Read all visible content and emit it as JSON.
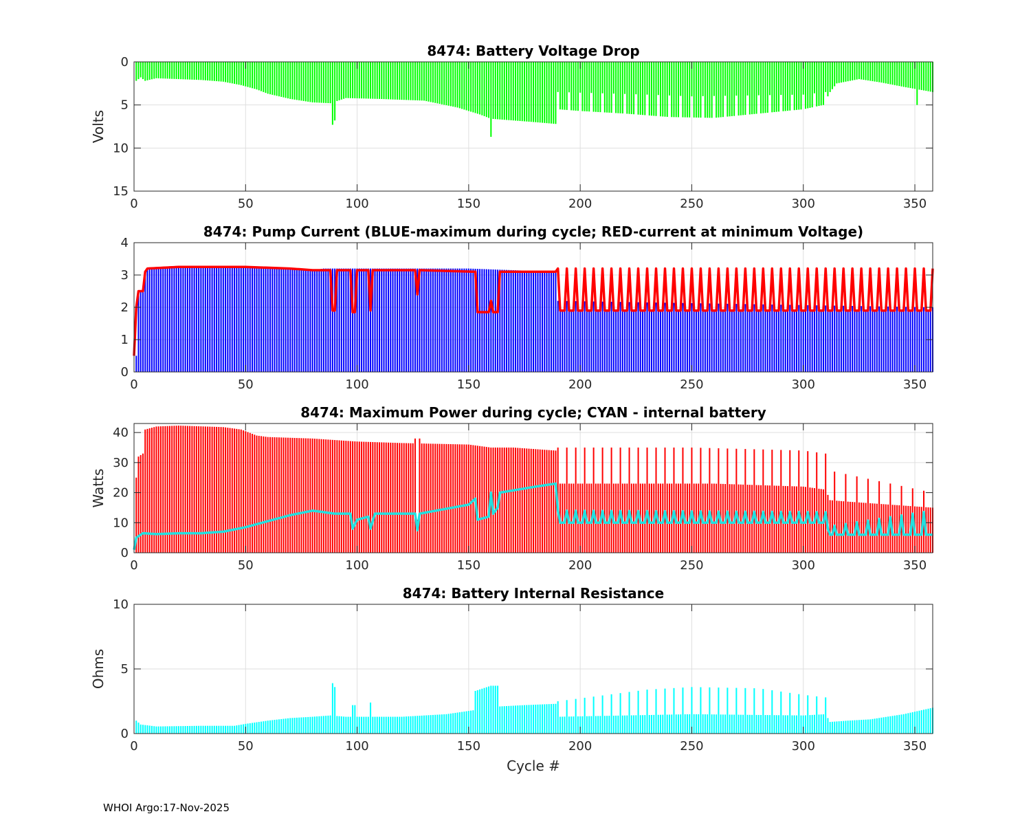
{
  "footer": {
    "agency": "WHOI Argo:",
    "date": "17-Nov-2025"
  },
  "colors": {
    "green": "#00ff00",
    "blue": "#0000ff",
    "red": "#ff0000",
    "cyan": "#00ffff",
    "cyan_line": "#22e0e0"
  },
  "chart_data": [
    {
      "type": "bar",
      "title": "8474: Battery Voltage Drop",
      "xlabel": "",
      "ylabel": "Volts",
      "xlim": [
        0,
        358
      ],
      "ylim": [
        0,
        15
      ],
      "y_reversed": true,
      "xticks": [
        0,
        50,
        100,
        150,
        200,
        250,
        300,
        350
      ],
      "yticks": [
        0,
        5,
        10,
        15
      ],
      "grid": true,
      "series": [
        {
          "name": "voltage drop",
          "color": "#00ff00",
          "kind": "bar",
          "knots": [
            [
              1,
              2.2
            ],
            [
              3,
              1.8
            ],
            [
              5,
              2.2
            ],
            [
              10,
              1.9
            ],
            [
              20,
              2.0
            ],
            [
              30,
              2.1
            ],
            [
              40,
              2.3
            ],
            [
              48,
              2.7
            ],
            [
              55,
              3.2
            ],
            [
              60,
              3.7
            ],
            [
              70,
              4.3
            ],
            [
              80,
              4.7
            ],
            [
              88,
              4.8
            ],
            [
              95,
              4.2
            ],
            [
              110,
              4.3
            ],
            [
              130,
              4.5
            ],
            [
              145,
              5.3
            ],
            [
              150,
              5.7
            ],
            [
              155,
              6.1
            ],
            [
              160,
              6.6
            ],
            [
              170,
              6.8
            ],
            [
              180,
              7.0
            ],
            [
              189,
              7.2
            ],
            [
              190,
              5.5
            ],
            [
              200,
              5.7
            ],
            [
              220,
              6.0
            ],
            [
              240,
              6.4
            ],
            [
              260,
              6.5
            ],
            [
              280,
              6.0
            ],
            [
              300,
              5.5
            ],
            [
              309,
              5.0
            ],
            [
              312,
              3.5
            ],
            [
              315,
              2.5
            ],
            [
              325,
              2.0
            ],
            [
              335,
              2.4
            ],
            [
              345,
              2.9
            ],
            [
              358,
              3.5
            ]
          ],
          "alt": {
            "start": 190,
            "end": 310,
            "period": 5,
            "knots": [
              [
                190,
                3.5
              ],
              [
                230,
                3.8
              ],
              [
                250,
                4.0
              ],
              [
                300,
                3.8
              ],
              [
                310,
                3.5
              ]
            ]
          },
          "spikes": [
            [
              89,
              7.3
            ],
            [
              90,
              6.8
            ],
            [
              160,
              8.7
            ],
            [
              351,
              5.0
            ]
          ]
        }
      ]
    },
    {
      "type": "bar",
      "title": "8474: Pump Current (BLUE-maximum during cycle; RED-current at minimum Voltage)",
      "xlabel": "",
      "ylabel": "",
      "xlim": [
        0,
        358
      ],
      "ylim": [
        0,
        4
      ],
      "xticks": [
        0,
        50,
        100,
        150,
        200,
        250,
        300,
        350
      ],
      "yticks": [
        0,
        1,
        2,
        3,
        4
      ],
      "grid": true,
      "series": [
        {
          "name": "BLUE-maximum during cycle",
          "color": "#0000ff",
          "kind": "bar",
          "knots": [
            [
              1,
              0.5
            ],
            [
              2,
              2.5
            ],
            [
              4,
              2.5
            ],
            [
              5,
              3.1
            ],
            [
              6,
              3.2
            ],
            [
              20,
              3.25
            ],
            [
              50,
              3.25
            ],
            [
              70,
              3.2
            ],
            [
              80,
              3.15
            ],
            [
              85,
              3.2
            ],
            [
              120,
              3.2
            ],
            [
              150,
              3.2
            ],
            [
              189,
              3.1
            ],
            [
              190,
              1.9
            ],
            [
              358,
              1.9
            ]
          ],
          "alt": {
            "start": 190,
            "end": 358,
            "period": 4,
            "knots": [
              [
                190,
                2.2
              ],
              [
                358,
                2.0
              ]
            ]
          },
          "spikes": []
        },
        {
          "name": "RED-current at minimum Voltage",
          "color": "#ff0000",
          "kind": "line",
          "knots": [
            [
              0,
              0.5
            ],
            [
              1,
              2.0
            ],
            [
              2,
              2.5
            ],
            [
              4,
              2.5
            ],
            [
              5,
              3.1
            ],
            [
              6,
              3.2
            ],
            [
              20,
              3.25
            ],
            [
              50,
              3.25
            ],
            [
              70,
              3.2
            ],
            [
              80,
              3.15
            ],
            [
              85,
              3.15
            ],
            [
              88,
              3.15
            ],
            [
              89,
              1.9
            ],
            [
              90,
              1.9
            ],
            [
              91,
              3.15
            ],
            [
              97,
              3.15
            ],
            [
              98,
              1.85
            ],
            [
              99,
              1.85
            ],
            [
              100,
              3.15
            ],
            [
              105,
              3.15
            ],
            [
              106,
              1.9
            ],
            [
              107,
              3.15
            ],
            [
              126,
              3.15
            ],
            [
              127,
              2.4
            ],
            [
              128,
              3.15
            ],
            [
              153,
              3.1
            ],
            [
              154,
              1.85
            ],
            [
              159,
              1.85
            ],
            [
              160,
              2.2
            ],
            [
              161,
              1.85
            ],
            [
              163,
              1.85
            ],
            [
              164,
              3.1
            ],
            [
              189,
              3.1
            ],
            [
              190,
              1.9
            ],
            [
              358,
              1.9
            ]
          ],
          "alt": {
            "start": 190,
            "end": 358,
            "period": 4,
            "knots": [
              [
                190,
                3.2
              ],
              [
                358,
                3.2
              ]
            ]
          },
          "spikes": []
        }
      ]
    },
    {
      "type": "bar",
      "title": "8474: Maximum Power during cycle; CYAN - internal battery",
      "xlabel": "",
      "ylabel": "Watts",
      "xlim": [
        0,
        358
      ],
      "ylim": [
        0,
        43
      ],
      "xticks": [
        0,
        50,
        100,
        150,
        200,
        250,
        300,
        350
      ],
      "yticks": [
        0,
        10,
        20,
        30,
        40
      ],
      "grid": true,
      "series": [
        {
          "name": "maximum power",
          "color": "#ff0000",
          "kind": "bar",
          "knots": [
            [
              1,
              25
            ],
            [
              2,
              32
            ],
            [
              4,
              33
            ],
            [
              5,
              41
            ],
            [
              10,
              42
            ],
            [
              20,
              42.3
            ],
            [
              40,
              41.8
            ],
            [
              48,
              41
            ],
            [
              55,
              39
            ],
            [
              60,
              38.5
            ],
            [
              80,
              38
            ],
            [
              100,
              37
            ],
            [
              120,
              36.5
            ],
            [
              150,
              36
            ],
            [
              160,
              35
            ],
            [
              170,
              35
            ],
            [
              189,
              34
            ],
            [
              190,
              23
            ],
            [
              220,
              23
            ],
            [
              260,
              23
            ],
            [
              300,
              22
            ],
            [
              310,
              21
            ],
            [
              312,
              17.5
            ],
            [
              320,
              17
            ],
            [
              358,
              15
            ]
          ],
          "alt": {
            "start": 190,
            "end": 310,
            "period": 4,
            "knots": [
              [
                190,
                35
              ],
              [
                250,
                35
              ],
              [
                300,
                34
              ],
              [
                310,
                33
              ]
            ]
          },
          "alt2": {
            "start": 314,
            "end": 358,
            "period": 5,
            "knots": [
              [
                314,
                27
              ],
              [
                358,
                20
              ]
            ]
          },
          "spikes": [
            [
              126,
              38
            ],
            [
              127,
              11
            ],
            [
              128,
              38
            ]
          ]
        },
        {
          "name": "CYAN - internal battery",
          "color": "#22e0e0",
          "kind": "line",
          "knots": [
            [
              0,
              1
            ],
            [
              1,
              5
            ],
            [
              4,
              6.5
            ],
            [
              10,
              6.2
            ],
            [
              20,
              6.5
            ],
            [
              30,
              6.5
            ],
            [
              40,
              7
            ],
            [
              50,
              8.5
            ],
            [
              60,
              10.5
            ],
            [
              70,
              12.5
            ],
            [
              80,
              14
            ],
            [
              90,
              13
            ],
            [
              97,
              13
            ],
            [
              98,
              8
            ],
            [
              100,
              11
            ],
            [
              105,
              12
            ],
            [
              106,
              8
            ],
            [
              108,
              13
            ],
            [
              126,
              13
            ],
            [
              127,
              7.5
            ],
            [
              128,
              13
            ],
            [
              150,
              16
            ],
            [
              153,
              18
            ],
            [
              154,
              11
            ],
            [
              159,
              12
            ],
            [
              160,
              20
            ],
            [
              161,
              13
            ],
            [
              163,
              15
            ],
            [
              164,
              20
            ],
            [
              180,
              22
            ],
            [
              189,
              23
            ],
            [
              190,
              10
            ],
            [
              310,
              10
            ],
            [
              312,
              6
            ],
            [
              358,
              6
            ]
          ],
          "alt": {
            "start": 190,
            "end": 310,
            "period": 4,
            "knots": [
              [
                190,
                14
              ],
              [
                310,
                13.5
              ]
            ]
          },
          "alt2": {
            "start": 314,
            "end": 358,
            "period": 5,
            "knots": [
              [
                314,
                9
              ],
              [
                358,
                14
              ]
            ]
          },
          "spikes": []
        }
      ]
    },
    {
      "type": "bar",
      "title": "8474: Battery Internal Resistance",
      "xlabel": "Cycle #",
      "ylabel": "Ohms",
      "xlim": [
        0,
        358
      ],
      "ylim": [
        0,
        10
      ],
      "xticks": [
        0,
        50,
        100,
        150,
        200,
        250,
        300,
        350
      ],
      "yticks": [
        0,
        5,
        10
      ],
      "grid": true,
      "series": [
        {
          "name": "internal resistance",
          "color": "#00ffff",
          "kind": "bar",
          "knots": [
            [
              1,
              1.0
            ],
            [
              3,
              0.7
            ],
            [
              10,
              0.55
            ],
            [
              30,
              0.6
            ],
            [
              45,
              0.6
            ],
            [
              50,
              0.75
            ],
            [
              60,
              1.0
            ],
            [
              70,
              1.2
            ],
            [
              80,
              1.3
            ],
            [
              88,
              1.4
            ],
            [
              95,
              1.3
            ],
            [
              120,
              1.3
            ],
            [
              140,
              1.5
            ],
            [
              152,
              1.8
            ],
            [
              153,
              3.3
            ],
            [
              160,
              3.7
            ],
            [
              163,
              3.7
            ],
            [
              164,
              2.1
            ],
            [
              175,
              2.2
            ],
            [
              189,
              2.3
            ],
            [
              190,
              1.3
            ],
            [
              250,
              1.5
            ],
            [
              300,
              1.4
            ],
            [
              310,
              1.5
            ],
            [
              312,
              0.9
            ],
            [
              320,
              1.0
            ],
            [
              330,
              1.1
            ],
            [
              345,
              1.5
            ],
            [
              358,
              2.0
            ]
          ],
          "alt": {
            "start": 190,
            "end": 310,
            "period": 4,
            "knots": [
              [
                190,
                2.5
              ],
              [
                230,
                3.4
              ],
              [
                250,
                3.6
              ],
              [
                280,
                3.5
              ],
              [
                300,
                3.0
              ],
              [
                310,
                2.8
              ]
            ]
          },
          "spikes": [
            [
              89,
              3.9
            ],
            [
              90,
              3.6
            ],
            [
              98,
              2.2
            ],
            [
              99,
              2.2
            ],
            [
              106,
              2.4
            ]
          ]
        }
      ]
    }
  ]
}
